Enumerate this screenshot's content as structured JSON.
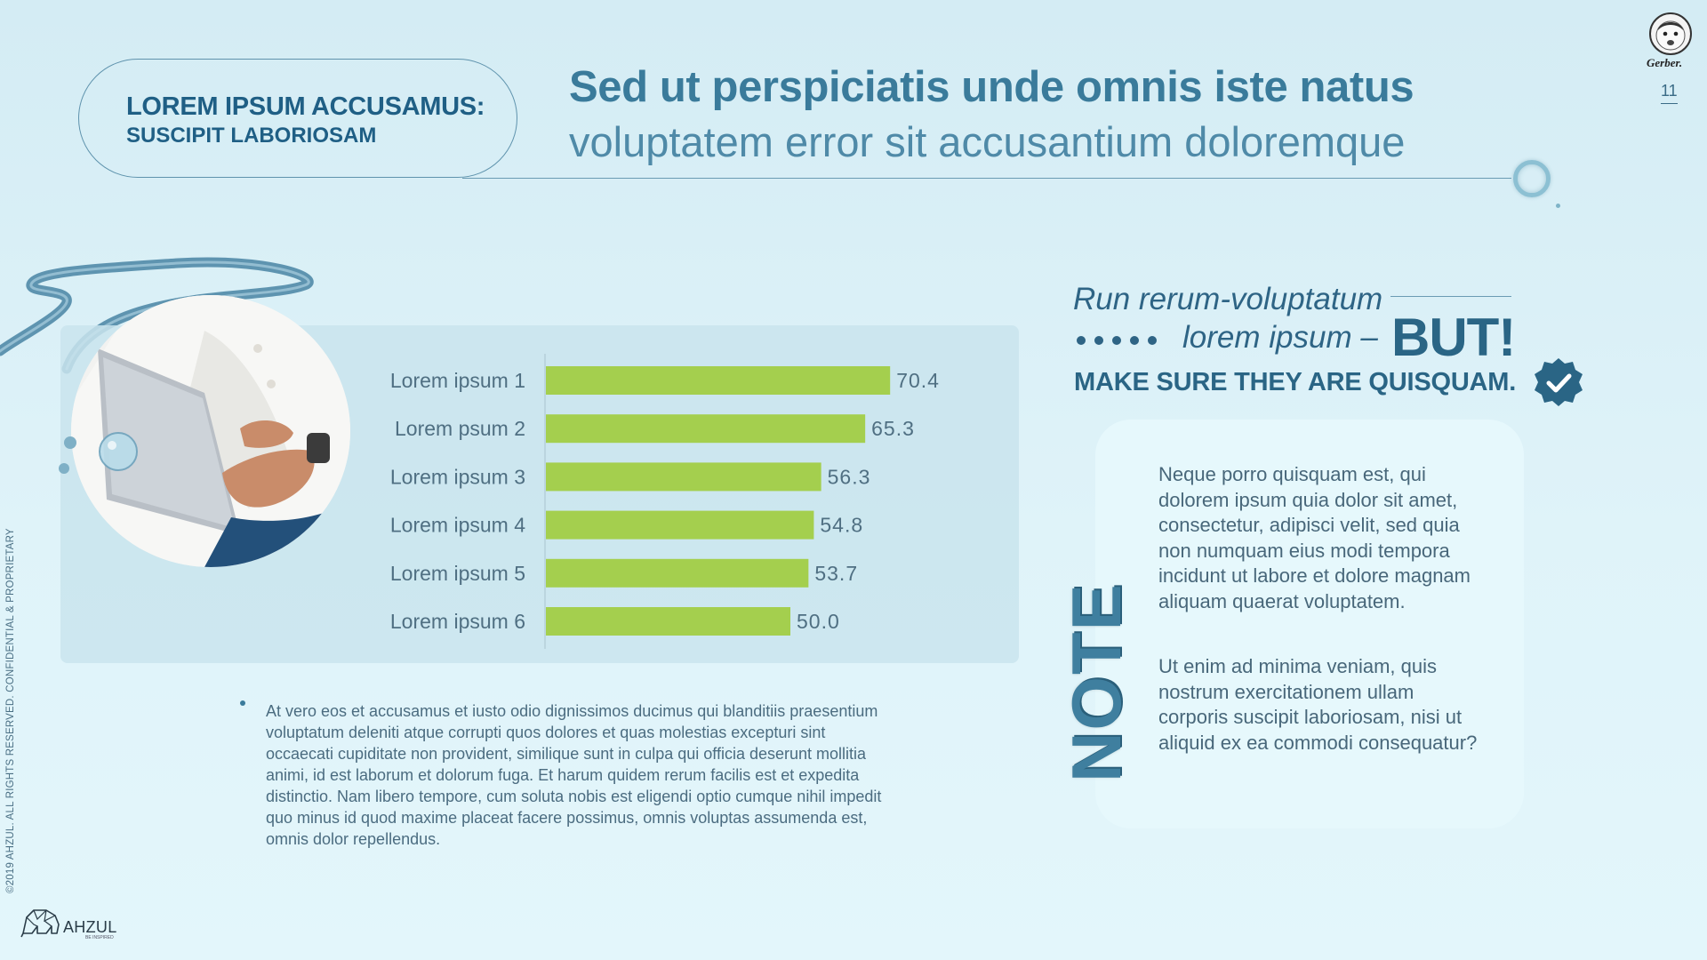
{
  "header": {
    "pill_line1": "LOREM IPSUM ACCUSAMUS:",
    "pill_line2": "SUSCIPIT LABORIOSAM",
    "title_bold": "Sed ut perspiciatis unde omnis iste natus",
    "title_light": "voluptatem error sit accusantium doloremque"
  },
  "brand": {
    "gerber": "Gerber.",
    "page_number": "11",
    "legal": "©2019 AHZUL. ALL RIGHTS RESERVED. CONFIDENTIAL & PROPRIETARY",
    "ahzul": "AHZUL",
    "ahzul_tag": "BE INSPIRED"
  },
  "chart_data": {
    "type": "bar",
    "orientation": "horizontal",
    "categories": [
      "Lorem ipsum 1",
      "Lorem psum 2",
      "Lorem ipsum 3",
      "Lorem ipsum 4",
      "Lorem ipsum 5",
      "Lorem ipsum 6"
    ],
    "values": [
      70.4,
      65.3,
      56.3,
      54.8,
      53.7,
      50.0
    ],
    "value_labels": [
      "70.4",
      "65.3",
      "56.3",
      "54.8",
      "53.7",
      "50.0"
    ],
    "xlim": [
      0,
      100
    ],
    "grid": false,
    "legend": "none",
    "bar_color": "#a4cf4e"
  },
  "bullet": {
    "text": "At vero eos et accusamus et iusto odio dignissimos ducimus qui blanditiis praesentium voluptatum deleniti atque corrupti quos dolores et quas molestias excepturi sint occaecati cupiditate non provident, similique sunt in culpa qui officia deserunt mollitia animi, id est laborum et dolorum fuga. Et harum quidem rerum facilis est et expedita distinctio. Nam libero tempore, cum soluta nobis est eligendi optio cumque nihil impedit quo minus id quod maxime placeat facere possimus, omnis voluptas assumenda est, omnis dolor repellendus."
  },
  "callout": {
    "line1": "Run rerum-voluptatum",
    "line2": "lorem ipsum –",
    "emphasis": "BUT!",
    "line3": "MAKE SURE THEY ARE QUISQUAM."
  },
  "note": {
    "label": "NOTE",
    "p1": "Neque porro quisquam est, qui dolorem ipsum quia dolor sit amet, consectetur, adipisci velit, sed quia non numquam eius modi tempora incidunt ut labore et dolore magnam aliquam quaerat voluptatem.",
    "p2": "Ut enim ad minima veniam, quis nostrum exercitationem ullam corporis suscipit laboriosam, nisi ut aliquid ex ea commodi consequatur?"
  },
  "icons": {
    "check": "check-badge-icon",
    "baby": "gerber-baby-icon",
    "elephant": "elephant-icon"
  },
  "colors": {
    "accent": "#2a6585",
    "bar": "#a4cf4e",
    "background": "#d9eff6"
  }
}
